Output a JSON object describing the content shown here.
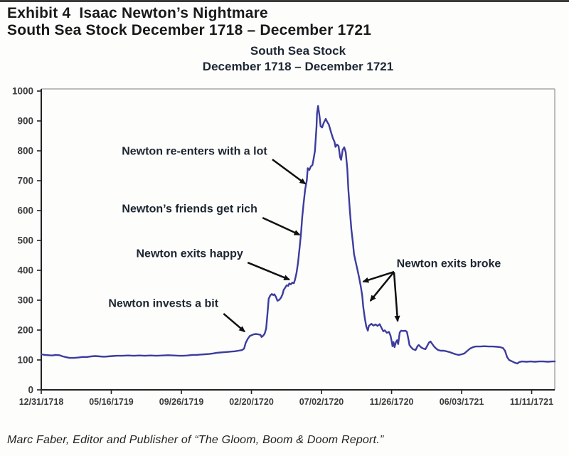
{
  "page": {
    "header_line1": "Exhibit 4  Isaac Newton’s Nightmare",
    "header_line2": "South Sea Stock December 1718 – December 1721",
    "footer": "Marc Faber, Editor and Publisher of “The Gloom, Boom & Doom Report.”"
  },
  "chart_data": {
    "type": "line",
    "title": "South Sea Stock",
    "subtitle": "December 1718 – December 1721",
    "ylabel": "",
    "xlabel": "",
    "ylim": [
      0,
      1000
    ],
    "y_ticks": [
      0,
      100,
      200,
      300,
      400,
      500,
      600,
      700,
      800,
      900,
      1000
    ],
    "x_ticks": [
      {
        "label": "12/31/1718",
        "f": 0
      },
      {
        "label": "05/16/1719",
        "f": 0.1364
      },
      {
        "label": "09/26/1719",
        "f": 0.2729
      },
      {
        "label": "02/20/1720",
        "f": 0.4093
      },
      {
        "label": "07/02/1720",
        "f": 0.5457
      },
      {
        "label": "11/26/1720",
        "f": 0.6822
      },
      {
        "label": "06/03/1721",
        "f": 0.8186
      },
      {
        "label": "11/11/1721",
        "f": 0.955
      }
    ],
    "grid": false,
    "legend": false,
    "line_color": "#3c3c9e",
    "axis_color": "#222222",
    "border_color": "#a8a8a8",
    "arrow_color": "#101010",
    "series": [
      {
        "name": "South Sea Stock price",
        "points": [
          [
            0,
            119
          ],
          [
            0.007,
            117
          ],
          [
            0.014,
            116
          ],
          [
            0.021,
            115
          ],
          [
            0.028,
            117
          ],
          [
            0.035,
            116
          ],
          [
            0.042,
            112
          ],
          [
            0.049,
            109
          ],
          [
            0.055,
            107
          ],
          [
            0.064,
            107
          ],
          [
            0.072,
            108
          ],
          [
            0.08,
            110
          ],
          [
            0.089,
            110
          ],
          [
            0.097,
            112
          ],
          [
            0.105,
            113
          ],
          [
            0.114,
            112
          ],
          [
            0.122,
            111
          ],
          [
            0.13,
            112
          ],
          [
            0.139,
            113
          ],
          [
            0.147,
            114
          ],
          [
            0.158,
            114
          ],
          [
            0.169,
            115
          ],
          [
            0.18,
            114
          ],
          [
            0.191,
            115
          ],
          [
            0.202,
            114
          ],
          [
            0.213,
            115
          ],
          [
            0.224,
            114
          ],
          [
            0.236,
            115
          ],
          [
            0.247,
            116
          ],
          [
            0.258,
            115
          ],
          [
            0.269,
            114
          ],
          [
            0.277,
            114
          ],
          [
            0.285,
            115
          ],
          [
            0.294,
            117
          ],
          [
            0.302,
            117
          ],
          [
            0.31,
            118
          ],
          [
            0.319,
            119
          ],
          [
            0.327,
            120
          ],
          [
            0.335,
            122
          ],
          [
            0.342,
            124
          ],
          [
            0.349,
            125
          ],
          [
            0.356,
            126
          ],
          [
            0.363,
            127
          ],
          [
            0.37,
            128
          ],
          [
            0.377,
            129
          ],
          [
            0.384,
            131
          ],
          [
            0.391,
            133
          ],
          [
            0.395,
            138
          ],
          [
            0.398,
            157
          ],
          [
            0.402,
            170
          ],
          [
            0.406,
            180
          ],
          [
            0.41,
            183
          ],
          [
            0.414,
            186
          ],
          [
            0.418,
            187
          ],
          [
            0.422,
            186
          ],
          [
            0.427,
            184
          ],
          [
            0.429,
            177
          ],
          [
            0.432,
            181
          ],
          [
            0.435,
            188
          ],
          [
            0.438,
            205
          ],
          [
            0.44,
            245
          ],
          [
            0.443,
            305
          ],
          [
            0.446,
            316
          ],
          [
            0.449,
            321
          ],
          [
            0.452,
            317
          ],
          [
            0.454,
            320
          ],
          [
            0.457,
            311
          ],
          [
            0.46,
            298
          ],
          [
            0.464,
            302
          ],
          [
            0.467,
            309
          ],
          [
            0.47,
            320
          ],
          [
            0.472,
            334
          ],
          [
            0.475,
            342
          ],
          [
            0.478,
            350
          ],
          [
            0.481,
            348
          ],
          [
            0.483,
            356
          ],
          [
            0.486,
            353
          ],
          [
            0.489,
            359
          ],
          [
            0.492,
            357
          ],
          [
            0.494,
            368
          ],
          [
            0.497,
            390
          ],
          [
            0.5,
            425
          ],
          [
            0.503,
            475
          ],
          [
            0.506,
            525
          ],
          [
            0.508,
            575
          ],
          [
            0.511,
            625
          ],
          [
            0.514,
            672
          ],
          [
            0.517,
            700
          ],
          [
            0.519,
            742
          ],
          [
            0.522,
            736
          ],
          [
            0.525,
            748
          ],
          [
            0.528,
            752
          ],
          [
            0.53,
            770
          ],
          [
            0.533,
            800
          ],
          [
            0.536,
            880
          ],
          [
            0.537,
            925
          ],
          [
            0.539,
            950
          ],
          [
            0.542,
            915
          ],
          [
            0.544,
            882
          ],
          [
            0.547,
            878
          ],
          [
            0.55,
            893
          ],
          [
            0.554,
            907
          ],
          [
            0.557,
            896
          ],
          [
            0.56,
            888
          ],
          [
            0.564,
            864
          ],
          [
            0.568,
            842
          ],
          [
            0.571,
            830
          ],
          [
            0.573,
            813
          ],
          [
            0.576,
            821
          ],
          [
            0.579,
            816
          ],
          [
            0.582,
            778
          ],
          [
            0.584,
            770
          ],
          [
            0.587,
            803
          ],
          [
            0.59,
            812
          ],
          [
            0.593,
            795
          ],
          [
            0.596,
            740
          ],
          [
            0.598,
            670
          ],
          [
            0.601,
            600
          ],
          [
            0.604,
            535
          ],
          [
            0.607,
            490
          ],
          [
            0.609,
            455
          ],
          [
            0.612,
            430
          ],
          [
            0.615,
            408
          ],
          [
            0.619,
            376
          ],
          [
            0.622,
            348
          ],
          [
            0.625,
            315
          ],
          [
            0.627,
            278
          ],
          [
            0.63,
            240
          ],
          [
            0.633,
            212
          ],
          [
            0.636,
            198
          ],
          [
            0.638,
            214
          ],
          [
            0.643,
            221
          ],
          [
            0.647,
            215
          ],
          [
            0.651,
            219
          ],
          [
            0.655,
            214
          ],
          [
            0.659,
            220
          ],
          [
            0.663,
            206
          ],
          [
            0.666,
            196
          ],
          [
            0.669,
            199
          ],
          [
            0.673,
            191
          ],
          [
            0.677,
            194
          ],
          [
            0.68,
            182
          ],
          [
            0.683,
            158
          ],
          [
            0.684,
            146
          ],
          [
            0.686,
            160
          ],
          [
            0.688,
            143
          ],
          [
            0.691,
            161
          ],
          [
            0.693,
            166
          ],
          [
            0.695,
            153
          ],
          [
            0.698,
            192
          ],
          [
            0.701,
            198
          ],
          [
            0.705,
            197
          ],
          [
            0.709,
            198
          ],
          [
            0.712,
            194
          ],
          [
            0.715,
            170
          ],
          [
            0.717,
            150
          ],
          [
            0.72,
            143
          ],
          [
            0.724,
            136
          ],
          [
            0.729,
            133
          ],
          [
            0.733,
            147
          ],
          [
            0.735,
            150
          ],
          [
            0.74,
            142
          ],
          [
            0.744,
            138
          ],
          [
            0.748,
            136
          ],
          [
            0.751,
            145
          ],
          [
            0.755,
            158
          ],
          [
            0.758,
            162
          ],
          [
            0.76,
            157
          ],
          [
            0.765,
            145
          ],
          [
            0.769,
            138
          ],
          [
            0.773,
            133
          ],
          [
            0.778,
            131
          ],
          [
            0.784,
            131
          ],
          [
            0.789,
            129
          ],
          [
            0.796,
            126
          ],
          [
            0.802,
            122
          ],
          [
            0.807,
            119
          ],
          [
            0.813,
            117
          ],
          [
            0.819,
            119
          ],
          [
            0.824,
            122
          ],
          [
            0.83,
            131
          ],
          [
            0.835,
            138
          ],
          [
            0.841,
            143
          ],
          [
            0.846,
            145
          ],
          [
            0.855,
            145
          ],
          [
            0.863,
            146
          ],
          [
            0.871,
            145
          ],
          [
            0.879,
            145
          ],
          [
            0.888,
            144
          ],
          [
            0.893,
            143
          ],
          [
            0.899,
            140
          ],
          [
            0.903,
            131
          ],
          [
            0.907,
            110
          ],
          [
            0.911,
            100
          ],
          [
            0.917,
            95
          ],
          [
            0.922,
            91
          ],
          [
            0.927,
            88
          ],
          [
            0.931,
            93
          ],
          [
            0.936,
            95
          ],
          [
            0.945,
            94
          ],
          [
            0.953,
            95
          ],
          [
            0.961,
            94
          ],
          [
            0.97,
            95
          ],
          [
            0.978,
            95
          ],
          [
            0.986,
            94
          ],
          [
            0.995,
            95
          ],
          [
            1,
            95
          ]
        ]
      }
    ],
    "annotations": [
      {
        "label": "Newton re-enters with a lot",
        "align": "end",
        "label_f": 0.44,
        "label_v": 800,
        "arrows": [
          {
            "f1": 0.45,
            "v1": 771,
            "f2": 0.514,
            "v2": 690
          }
        ]
      },
      {
        "label": "Newton’s friends get rich",
        "align": "end",
        "label_f": 0.421,
        "label_v": 607,
        "arrows": [
          {
            "f1": 0.431,
            "v1": 576,
            "f2": 0.503,
            "v2": 519
          }
        ]
      },
      {
        "label": "Newton exits happy",
        "align": "end",
        "label_f": 0.393,
        "label_v": 457,
        "arrows": [
          {
            "f1": 0.402,
            "v1": 426,
            "f2": 0.483,
            "v2": 369
          }
        ]
      },
      {
        "label": "Newton invests a bit",
        "align": "end",
        "label_f": 0.345,
        "label_v": 290,
        "arrows": [
          {
            "f1": 0.355,
            "v1": 255,
            "f2": 0.396,
            "v2": 195
          }
        ]
      },
      {
        "label": "Newton exits broke",
        "align": "start",
        "label_f": 0.692,
        "label_v": 424,
        "arrows": [
          {
            "f1": 0.687,
            "v1": 395,
            "f2": 0.627,
            "v2": 362
          },
          {
            "f1": 0.687,
            "v1": 395,
            "f2": 0.641,
            "v2": 298
          },
          {
            "f1": 0.687,
            "v1": 393,
            "f2": 0.694,
            "v2": 230
          }
        ]
      }
    ]
  }
}
